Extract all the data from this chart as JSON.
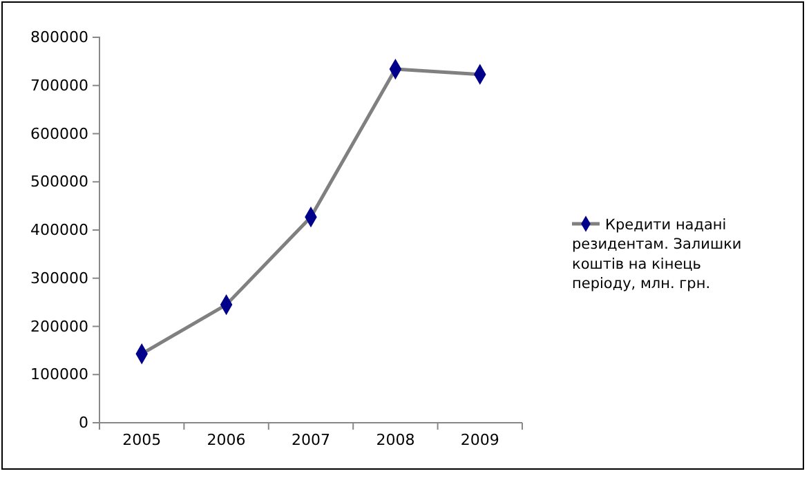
{
  "chart_data": {
    "type": "line",
    "categories": [
      "2005",
      "2006",
      "2007",
      "2008",
      "2009"
    ],
    "series": [
      {
        "name": "Кредити надані резидентам. Залишки коштів на кінець періоду, млн. грн.",
        "color": "#808080",
        "values": [
          143000,
          245000,
          427000,
          734000,
          723000
        ]
      }
    ],
    "ylim": [
      0,
      800000
    ],
    "yticks": [
      0,
      100000,
      200000,
      300000,
      400000,
      500000,
      600000,
      700000,
      800000
    ],
    "grid": false,
    "legend": "right",
    "marker": "diamond",
    "line_style": "solid"
  }
}
